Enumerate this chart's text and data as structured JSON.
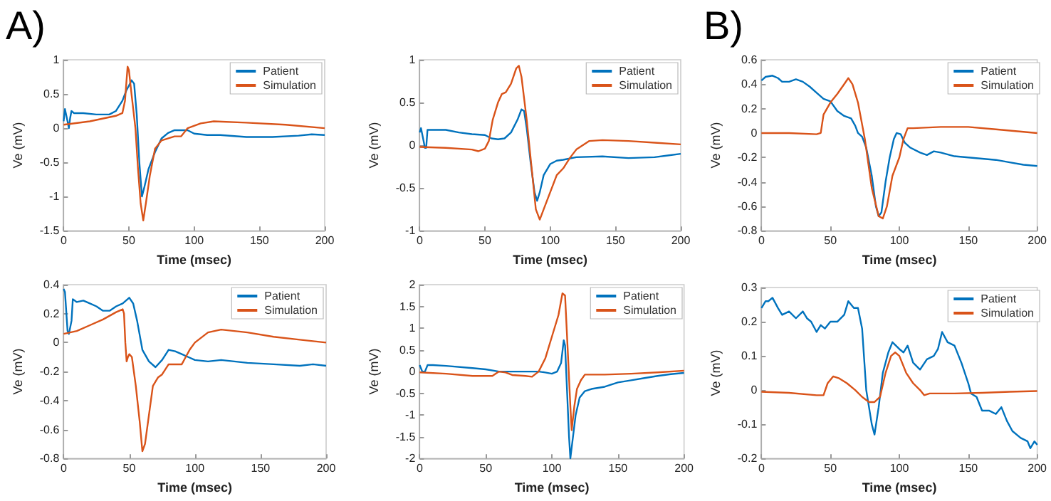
{
  "chart_data": [
    {
      "type": "line",
      "annotations": [
        "A)"
      ],
      "xlabel": "Time (msec)",
      "ylabel": "Ve (mV)",
      "legend": "top right",
      "xlim": [
        0,
        200
      ],
      "xticks": [
        0,
        50,
        100,
        150,
        200
      ],
      "ylim": [
        -1.5,
        1
      ],
      "yticks": [
        -1.5,
        -1,
        -0.5,
        0,
        0.5,
        1
      ],
      "series": [
        {
          "name": "Patient",
          "color": "#0072bd",
          "x": [
            0,
            1,
            3,
            4,
            5,
            6,
            8,
            15,
            25,
            35,
            40,
            45,
            48,
            50,
            52,
            54,
            56,
            58,
            60,
            62,
            65,
            70,
            75,
            80,
            85,
            90,
            95,
            100,
            110,
            120,
            140,
            160,
            180,
            190,
            200
          ],
          "values": [
            0.1,
            0.28,
            0.1,
            0.0,
            0.15,
            0.25,
            0.22,
            0.22,
            0.2,
            0.2,
            0.25,
            0.4,
            0.55,
            0.62,
            0.7,
            0.65,
            0.2,
            -0.5,
            -1.0,
            -0.85,
            -0.6,
            -0.35,
            -0.15,
            -0.07,
            -0.03,
            -0.03,
            -0.03,
            -0.08,
            -0.1,
            -0.1,
            -0.13,
            -0.13,
            -0.11,
            -0.09,
            -0.1
          ]
        },
        {
          "name": "Simulation",
          "color": "#d95319",
          "x": [
            0,
            20,
            40,
            45,
            47,
            49,
            50,
            52,
            55,
            57,
            59,
            61,
            63,
            66,
            70,
            75,
            85,
            90,
            95,
            105,
            115,
            140,
            170,
            200
          ],
          "values": [
            0.05,
            0.1,
            0.18,
            0.22,
            0.4,
            0.9,
            0.85,
            0.5,
            0,
            -0.6,
            -1.1,
            -1.35,
            -1.1,
            -0.7,
            -0.3,
            -0.18,
            -0.12,
            -0.12,
            0,
            0.07,
            0.1,
            0.08,
            0.05,
            0.0
          ]
        }
      ]
    },
    {
      "type": "line",
      "xlabel": "Time (msec)",
      "ylabel": "Ve (mV)",
      "legend": "top right",
      "xlim": [
        0,
        200
      ],
      "xticks": [
        0,
        50,
        100,
        150,
        200
      ],
      "ylim": [
        -1,
        1
      ],
      "yticks": [
        -1,
        -0.5,
        0,
        0.5,
        1
      ],
      "series": [
        {
          "name": "Patient",
          "color": "#0072bd",
          "x": [
            0,
            1,
            3,
            4,
            5,
            6,
            10,
            20,
            30,
            40,
            50,
            55,
            60,
            65,
            70,
            75,
            78,
            80,
            82,
            85,
            88,
            90,
            92,
            95,
            100,
            105,
            110,
            120,
            140,
            160,
            180,
            190,
            200
          ],
          "values": [
            0.15,
            0.2,
            0.05,
            -0.03,
            -0.03,
            0.18,
            0.18,
            0.18,
            0.15,
            0.13,
            0.12,
            0.08,
            0.07,
            0.08,
            0.15,
            0.3,
            0.42,
            0.4,
            0.2,
            -0.2,
            -0.55,
            -0.65,
            -0.55,
            -0.35,
            -0.22,
            -0.18,
            -0.17,
            -0.14,
            -0.13,
            -0.15,
            -0.14,
            -0.12,
            -0.1
          ]
        },
        {
          "name": "Simulation",
          "color": "#d95319",
          "x": [
            0,
            20,
            40,
            45,
            50,
            53,
            56,
            60,
            63,
            66,
            70,
            74,
            76,
            78,
            82,
            86,
            89,
            92,
            95,
            100,
            105,
            110,
            115,
            120,
            130,
            140,
            160,
            180,
            200
          ],
          "values": [
            -0.02,
            -0.03,
            -0.05,
            -0.07,
            -0.04,
            0.05,
            0.3,
            0.5,
            0.6,
            0.62,
            0.72,
            0.9,
            0.93,
            0.8,
            0.3,
            -0.3,
            -0.75,
            -0.87,
            -0.75,
            -0.55,
            -0.35,
            -0.27,
            -0.15,
            -0.05,
            0.05,
            0.06,
            0.05,
            0.03,
            0.01
          ]
        }
      ]
    },
    {
      "type": "line",
      "annotations": [
        "B)"
      ],
      "xlabel": "Time (msec)",
      "ylabel": "Ve (mV)",
      "legend": "top right",
      "xlim": [
        0,
        200
      ],
      "xticks": [
        0,
        50,
        100,
        150,
        200
      ],
      "ylim": [
        -0.8,
        0.6
      ],
      "yticks": [
        -0.8,
        -0.6,
        -0.4,
        -0.2,
        0,
        0.2,
        0.4,
        0.6
      ],
      "series": [
        {
          "name": "Patient",
          "color": "#0072bd",
          "x": [
            0,
            3,
            8,
            12,
            15,
            20,
            25,
            30,
            35,
            40,
            45,
            50,
            55,
            60,
            65,
            68,
            70,
            73,
            76,
            80,
            83,
            85,
            87,
            90,
            93,
            96,
            98,
            101,
            104,
            108,
            115,
            120,
            125,
            130,
            140,
            150,
            160,
            170,
            180,
            190,
            200
          ],
          "values": [
            0.43,
            0.46,
            0.47,
            0.45,
            0.42,
            0.42,
            0.44,
            0.42,
            0.38,
            0.33,
            0.28,
            0.26,
            0.18,
            0.14,
            0.12,
            0.06,
            0.0,
            -0.03,
            -0.12,
            -0.35,
            -0.6,
            -0.68,
            -0.65,
            -0.4,
            -0.2,
            -0.05,
            0.0,
            -0.01,
            -0.08,
            -0.12,
            -0.16,
            -0.18,
            -0.15,
            -0.16,
            -0.19,
            -0.2,
            -0.21,
            -0.22,
            -0.24,
            -0.26,
            -0.27
          ]
        },
        {
          "name": "Simulation",
          "color": "#d95319",
          "x": [
            0,
            20,
            40,
            43,
            45,
            50,
            55,
            60,
            63,
            66,
            70,
            75,
            80,
            85,
            88,
            91,
            95,
            100,
            103,
            106,
            110,
            130,
            150,
            170,
            200
          ],
          "values": [
            0.0,
            0.0,
            -0.01,
            0.0,
            0.15,
            0.25,
            0.32,
            0.4,
            0.45,
            0.4,
            0.25,
            -0.05,
            -0.45,
            -0.68,
            -0.7,
            -0.6,
            -0.35,
            -0.2,
            -0.05,
            0.04,
            0.04,
            0.05,
            0.05,
            0.03,
            0.0
          ]
        }
      ]
    },
    {
      "type": "line",
      "xlabel": "Time (msec)",
      "ylabel": "Ve (mV)",
      "legend": "top right",
      "xlim": [
        0,
        200
      ],
      "xticks": [
        0,
        50,
        100,
        150,
        200
      ],
      "ylim": [
        -0.8,
        0.4
      ],
      "yticks": [
        -0.8,
        -0.6,
        -0.4,
        -0.2,
        0,
        0.2,
        0.4
      ],
      "series": [
        {
          "name": "Patient",
          "color": "#0072bd",
          "x": [
            0,
            1,
            3,
            4,
            6,
            7,
            10,
            15,
            20,
            25,
            30,
            35,
            40,
            45,
            50,
            53,
            56,
            60,
            65,
            70,
            75,
            80,
            85,
            90,
            95,
            100,
            110,
            120,
            130,
            140,
            160,
            180,
            190,
            200
          ],
          "values": [
            0.37,
            0.35,
            0.08,
            0.06,
            0.15,
            0.3,
            0.28,
            0.29,
            0.27,
            0.25,
            0.22,
            0.22,
            0.25,
            0.27,
            0.31,
            0.27,
            0.15,
            -0.05,
            -0.13,
            -0.17,
            -0.12,
            -0.05,
            -0.06,
            -0.08,
            -0.1,
            -0.12,
            -0.13,
            -0.12,
            -0.13,
            -0.14,
            -0.15,
            -0.16,
            -0.15,
            -0.16
          ]
        },
        {
          "name": "Simulation",
          "color": "#d95319",
          "x": [
            0,
            10,
            20,
            30,
            40,
            45,
            46,
            47,
            48,
            49,
            50,
            52,
            55,
            58,
            60,
            62,
            65,
            68,
            72,
            75,
            80,
            90,
            93,
            96,
            100,
            110,
            120,
            140,
            160,
            180,
            200
          ],
          "values": [
            0.06,
            0.08,
            0.12,
            0.16,
            0.21,
            0.23,
            0.2,
            0.0,
            -0.13,
            -0.1,
            -0.08,
            -0.1,
            -0.3,
            -0.55,
            -0.75,
            -0.7,
            -0.5,
            -0.3,
            -0.24,
            -0.22,
            -0.15,
            -0.15,
            -0.1,
            -0.05,
            0.0,
            0.07,
            0.09,
            0.07,
            0.04,
            0.02,
            0.0
          ]
        }
      ]
    },
    {
      "type": "line",
      "xlabel": "Time (msec)",
      "ylabel": "Ve (mV)",
      "legend": "top right",
      "xlim": [
        0,
        200
      ],
      "xticks": [
        0,
        50,
        100,
        150,
        200
      ],
      "ylim": [
        -2,
        2
      ],
      "yticks": [
        -2,
        -1.5,
        -1,
        -0.5,
        0,
        0.5,
        1,
        1.5,
        2
      ],
      "series": [
        {
          "name": "Patient",
          "color": "#0072bd",
          "x": [
            0,
            2,
            4,
            6,
            10,
            20,
            40,
            50,
            60,
            80,
            90,
            95,
            100,
            104,
            107,
            109,
            110,
            112,
            113,
            114,
            116,
            118,
            121,
            125,
            130,
            140,
            150,
            160,
            170,
            180,
            190,
            200
          ],
          "values": [
            0.15,
            0.0,
            0.0,
            0.15,
            0.15,
            0.13,
            0.08,
            0.05,
            0.0,
            0.0,
            0.0,
            -0.02,
            -0.05,
            0.0,
            0.2,
            0.72,
            0.6,
            -0.8,
            -1.5,
            -2.0,
            -1.5,
            -1.0,
            -0.6,
            -0.45,
            -0.4,
            -0.35,
            -0.25,
            -0.2,
            -0.15,
            -0.1,
            -0.06,
            -0.03
          ]
        },
        {
          "name": "Simulation",
          "color": "#d95319",
          "x": [
            0,
            20,
            40,
            55,
            60,
            65,
            70,
            80,
            85,
            90,
            95,
            100,
            105,
            108,
            110,
            112,
            114,
            115,
            117,
            119,
            122,
            125,
            140,
            160,
            180,
            200
          ],
          "values": [
            -0.02,
            -0.05,
            -0.1,
            -0.1,
            0.0,
            -0.02,
            -0.08,
            -0.1,
            -0.12,
            0.0,
            0.3,
            0.8,
            1.3,
            1.8,
            1.75,
            0.5,
            -0.8,
            -1.35,
            -0.8,
            -0.4,
            -0.2,
            -0.07,
            -0.07,
            -0.05,
            -0.02,
            0.02
          ]
        }
      ]
    },
    {
      "type": "line",
      "xlabel": "Time (msec)",
      "ylabel": "Ve (mV)",
      "legend": "top right",
      "xlim": [
        0,
        200
      ],
      "xticks": [
        0,
        50,
        100,
        150,
        200
      ],
      "ylim": [
        -0.2,
        0.3
      ],
      "yticks": [
        -0.2,
        -0.1,
        0,
        0.1,
        0.2,
        0.3
      ],
      "series": [
        {
          "name": "Patient",
          "color": "#0072bd",
          "x": [
            0,
            3,
            5,
            8,
            12,
            15,
            20,
            25,
            30,
            33,
            36,
            40,
            43,
            46,
            50,
            55,
            60,
            63,
            67,
            70,
            73,
            76,
            78,
            80,
            82,
            85,
            88,
            92,
            95,
            100,
            103,
            106,
            110,
            115,
            120,
            125,
            128,
            131,
            135,
            140,
            145,
            150,
            152,
            156,
            160,
            165,
            170,
            174,
            178,
            182,
            188,
            193,
            195,
            198,
            200
          ],
          "values": [
            0.24,
            0.26,
            0.26,
            0.27,
            0.24,
            0.22,
            0.23,
            0.21,
            0.23,
            0.21,
            0.2,
            0.17,
            0.19,
            0.18,
            0.2,
            0.2,
            0.22,
            0.26,
            0.24,
            0.24,
            0.18,
            0.0,
            -0.05,
            -0.1,
            -0.13,
            -0.05,
            0.05,
            0.11,
            0.14,
            0.12,
            0.11,
            0.13,
            0.08,
            0.06,
            0.09,
            0.1,
            0.12,
            0.17,
            0.14,
            0.13,
            0.08,
            0.02,
            -0.01,
            -0.02,
            -0.06,
            -0.06,
            -0.07,
            -0.05,
            -0.09,
            -0.12,
            -0.14,
            -0.15,
            -0.17,
            -0.15,
            -0.16
          ]
        },
        {
          "name": "Simulation",
          "color": "#d95319",
          "x": [
            0,
            20,
            40,
            45,
            48,
            52,
            56,
            62,
            68,
            73,
            78,
            82,
            86,
            90,
            94,
            97,
            100,
            105,
            110,
            115,
            118,
            122,
            140,
            160,
            180,
            200
          ],
          "values": [
            -0.005,
            -0.008,
            -0.015,
            -0.015,
            0.02,
            0.04,
            0.035,
            0.02,
            0.0,
            -0.02,
            -0.035,
            -0.035,
            -0.02,
            0.05,
            0.1,
            0.11,
            0.1,
            0.05,
            0.02,
            0.0,
            -0.015,
            -0.01,
            -0.01,
            -0.008,
            -0.005,
            -0.003
          ]
        }
      ]
    }
  ]
}
